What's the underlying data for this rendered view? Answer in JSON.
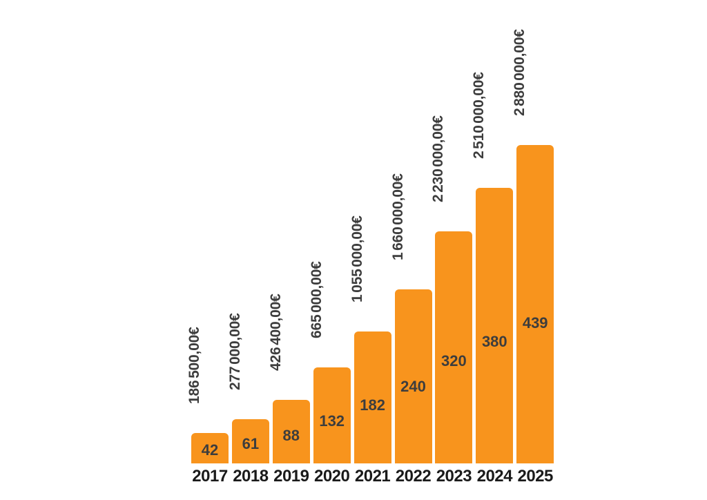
{
  "chart_data": {
    "type": "bar",
    "title": "",
    "xlabel": "",
    "ylabel": "",
    "grid": false,
    "legend": false,
    "background": "#FFFFFF",
    "bar_color": "#F8941D",
    "value_label_color": "#3D3D3D",
    "axis_label_color": "#1A1A1A",
    "ylim": [
      0,
      460
    ],
    "categories": [
      "2017",
      "2018",
      "2019",
      "2020",
      "2021",
      "2022",
      "2023",
      "2024",
      "2025"
    ],
    "series": [
      {
        "name": "units",
        "label_placement": "inside",
        "values": [
          42,
          61,
          88,
          132,
          182,
          240,
          320,
          380,
          439
        ]
      },
      {
        "name": "revenue",
        "label_placement": "above-bar-rotated-90",
        "values": [
          186500,
          277000,
          426400,
          665000,
          1055000,
          1660000,
          2230000,
          2510000,
          2880000
        ],
        "labels": [
          "186 500,00€",
          "277 000,00€",
          "426 400,00€",
          "665 000,00€",
          "1 055 000,00€",
          "1 660 000,00€",
          "2 230 000,00€",
          "2 510 000,00€",
          "2 880 000,00€"
        ]
      }
    ]
  }
}
